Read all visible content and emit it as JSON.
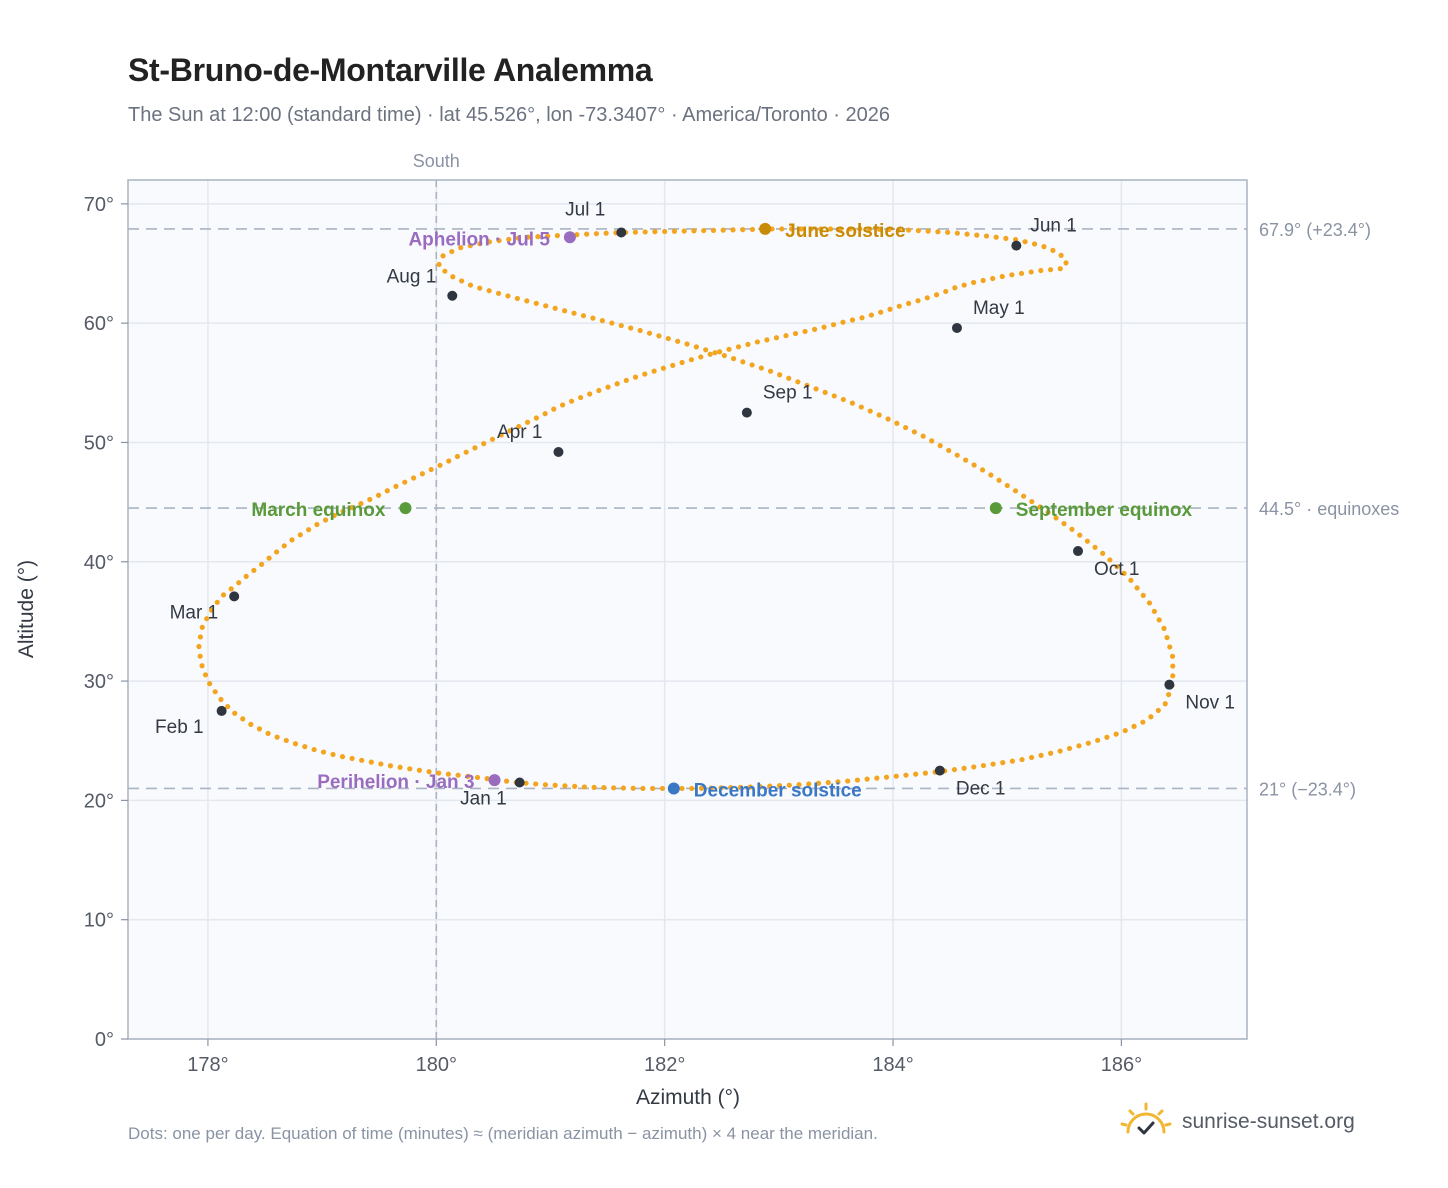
{
  "title": "St-Bruno-de-Montarville Analemma",
  "subtitle": "The Sun at 12:00 (standard time) · lat 45.526°, lon -73.3407° · America/Toronto · 2026",
  "footnote": "Dots: one per day. Equation of time (minutes) ≈ (meridian azimuth − azimuth) × 4 near the meridian.",
  "brand": {
    "name": "sunrise-sunset.org",
    "icon": "sun-logo-icon",
    "color": "#f2b632"
  },
  "colors": {
    "path": "#f3a51f",
    "month_dot": "#2f3640",
    "june_solstice": "#c98a06",
    "december_solstice": "#3a78c6",
    "equinox": "#5a9a3a",
    "apsis": "#9a6cc0",
    "reference_line": "#aab4c2",
    "grid": "#e3e8ef",
    "plot_bg": "#f8fafd",
    "frame": "#a9b3c1"
  },
  "chart_data": {
    "type": "scatter",
    "xlabel": "Azimuth (°)",
    "ylabel": "Altitude (°)",
    "xlim": [
      177.3,
      187.1
    ],
    "ylim": [
      0,
      72
    ],
    "x_ticks": [
      178,
      180,
      182,
      184,
      186
    ],
    "x_tick_labels": [
      "178°",
      "180°",
      "182°",
      "184°",
      "186°"
    ],
    "y_ticks": [
      0,
      10,
      20,
      30,
      40,
      50,
      60,
      70
    ],
    "y_tick_labels": [
      "0°",
      "10°",
      "20°",
      "30°",
      "40°",
      "50°",
      "60°",
      "70°"
    ],
    "grid": true,
    "meridian": {
      "x": 180,
      "label": "South"
    },
    "reference_lines": [
      {
        "y": 67.9,
        "label": "67.9° (+23.4°)"
      },
      {
        "y": 44.5,
        "label": "44.5° · equinoxes"
      },
      {
        "y": 21.0,
        "label": "21° (−23.4°)"
      }
    ],
    "series": [
      {
        "type": "daily-path",
        "x": [
          180.7,
          180.55,
          180.38,
          180.2,
          180.01,
          179.8,
          179.6,
          179.38,
          179.16,
          178.95,
          178.75,
          178.55,
          178.37,
          178.22,
          178.1,
          178.0,
          177.94,
          177.92,
          177.95,
          178.02,
          178.12,
          178.24,
          178.35,
          178.46,
          178.56,
          178.65,
          178.73,
          178.85,
          178.95,
          179.05,
          179.15,
          179.25,
          179.37,
          179.5,
          179.62,
          179.73,
          179.84,
          179.97,
          180.08,
          180.2,
          180.35,
          180.5,
          180.65,
          180.8,
          180.93,
          181.07,
          181.22,
          181.38,
          181.55,
          181.72,
          181.88,
          182.05,
          182.22,
          182.4,
          182.6,
          182.8,
          182.99,
          183.18,
          183.37,
          183.57,
          183.75,
          183.92,
          184.08,
          184.26,
          184.42,
          184.55,
          184.7,
          184.85,
          185.0,
          185.15,
          185.28,
          185.4,
          185.5,
          185.52,
          185.45,
          185.3,
          185.08,
          184.82,
          184.5,
          184.15,
          183.78,
          183.38,
          182.95,
          182.52,
          182.07,
          181.62,
          181.18,
          180.78,
          180.45,
          180.2,
          180.05,
          180.02,
          180.12,
          180.32,
          180.62,
          180.98,
          181.38,
          181.78,
          182.18,
          182.55,
          182.92,
          183.27,
          183.62,
          183.95,
          184.27,
          184.55,
          184.82,
          185.08,
          185.35,
          185.6,
          185.85,
          186.07,
          186.25,
          186.38,
          186.45,
          186.45,
          186.38,
          186.22,
          186.0,
          185.75,
          185.45,
          185.12,
          184.78,
          184.4,
          184.0,
          183.58,
          183.15,
          182.7,
          182.25,
          181.8,
          181.35,
          180.98,
          180.7
        ],
        "y": [
          21.5,
          21.7,
          21.9,
          22.1,
          22.3,
          22.6,
          22.9,
          23.3,
          23.7,
          24.2,
          24.8,
          25.5,
          26.4,
          27.4,
          28.6,
          30.0,
          31.5,
          33.0,
          34.5,
          35.8,
          37.1,
          38.0,
          38.9,
          39.7,
          40.5,
          41.2,
          41.8,
          42.5,
          43.1,
          43.6,
          44.1,
          44.5,
          45.0,
          45.6,
          46.2,
          46.7,
          47.2,
          47.8,
          48.3,
          48.9,
          49.6,
          50.3,
          51.0,
          51.7,
          52.3,
          53.0,
          53.6,
          54.2,
          54.8,
          55.4,
          55.9,
          56.4,
          56.9,
          57.4,
          57.9,
          58.4,
          58.8,
          59.2,
          59.6,
          60.1,
          60.5,
          61.0,
          61.5,
          62.0,
          62.5,
          63.0,
          63.4,
          63.7,
          64.0,
          64.2,
          64.4,
          64.5,
          64.6,
          65.2,
          65.9,
          66.5,
          67.0,
          67.3,
          67.6,
          67.8,
          67.9,
          67.9,
          67.9,
          67.8,
          67.7,
          67.6,
          67.4,
          67.2,
          66.8,
          66.3,
          65.6,
          64.8,
          64.0,
          63.1,
          62.3,
          61.4,
          60.4,
          59.4,
          58.3,
          57.2,
          56.0,
          54.7,
          53.4,
          52.0,
          50.5,
          49.0,
          47.5,
          45.9,
          44.2,
          42.5,
          40.6,
          38.6,
          36.5,
          34.3,
          32.0,
          29.8,
          28.0,
          26.7,
          25.7,
          24.9,
          24.1,
          23.4,
          22.9,
          22.4,
          22.0,
          21.6,
          21.3,
          21.1,
          21.0,
          21.0,
          21.1,
          21.3,
          21.5
        ]
      }
    ],
    "month_markers": [
      {
        "label": "Jan 1",
        "x": 180.73,
        "y": 21.5
      },
      {
        "label": "Feb 1",
        "x": 178.12,
        "y": 27.5
      },
      {
        "label": "Mar 1",
        "x": 178.23,
        "y": 37.1
      },
      {
        "label": "Apr 1",
        "x": 181.07,
        "y": 49.2
      },
      {
        "label": "May 1",
        "x": 184.56,
        "y": 59.6
      },
      {
        "label": "Jun 1",
        "x": 185.08,
        "y": 66.5
      },
      {
        "label": "Jul 1",
        "x": 181.62,
        "y": 67.6
      },
      {
        "label": "Aug 1",
        "x": 180.14,
        "y": 62.3
      },
      {
        "label": "Sep 1",
        "x": 182.72,
        "y": 52.5
      },
      {
        "label": "Oct 1",
        "x": 185.62,
        "y": 40.9
      },
      {
        "label": "Nov 1",
        "x": 186.42,
        "y": 29.7
      },
      {
        "label": "Dec 1",
        "x": 184.41,
        "y": 22.5
      }
    ],
    "events": [
      {
        "label": "June solstice",
        "x": 182.88,
        "y": 67.9,
        "kind": "june_solstice"
      },
      {
        "label": "December solstice",
        "x": 182.08,
        "y": 21.0,
        "kind": "december_solstice"
      },
      {
        "label": "March equinox",
        "x": 179.73,
        "y": 44.5,
        "kind": "equinox"
      },
      {
        "label": "September equinox",
        "x": 184.9,
        "y": 44.5,
        "kind": "equinox"
      },
      {
        "label": "Aphelion · Jul 5",
        "x": 181.17,
        "y": 67.2,
        "kind": "apsis"
      },
      {
        "label": "Perihelion · Jan 3",
        "x": 180.51,
        "y": 21.7,
        "kind": "apsis"
      }
    ]
  }
}
